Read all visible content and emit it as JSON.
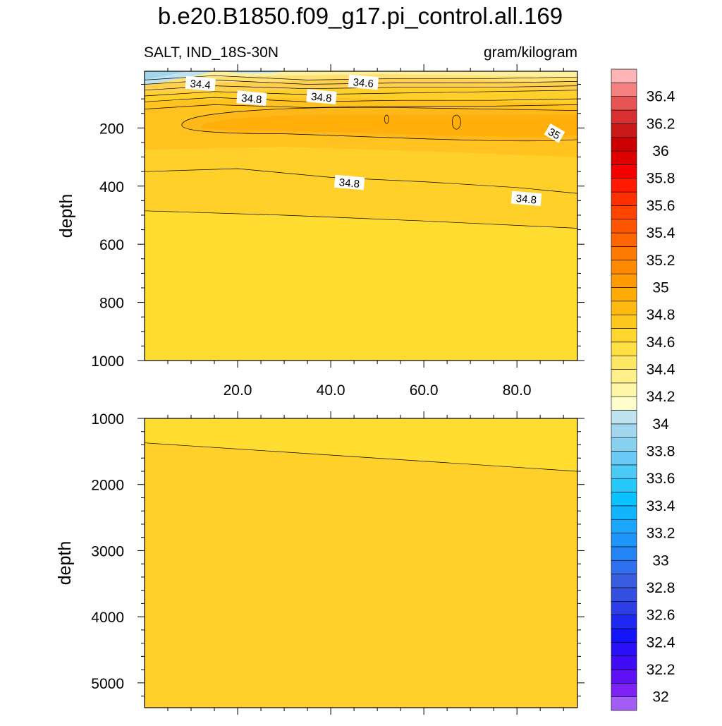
{
  "title": "b.e20.B1850.f09_g17.pi_control.all.169",
  "chart_data": [
    {
      "type": "heatmap",
      "panel": "upper",
      "left_label": "SALT, IND_18S-30N",
      "right_label": "gram/kilogram",
      "xlabel": "",
      "ylabel": "depth",
      "xlim": [
        0,
        93
      ],
      "ylim": [
        1000,
        5
      ],
      "x_ticks": [
        20,
        40,
        60,
        80
      ],
      "x_tick_labels": [
        "20.0",
        "40.0",
        "60.0",
        "80.0"
      ],
      "y_ticks": [
        200,
        400,
        600,
        800,
        1000
      ],
      "y_tick_labels": [
        "200",
        "400",
        "600",
        "800",
        "1000"
      ],
      "contour_labels": [
        {
          "text": "34.4",
          "x": 12,
          "depth": 50
        },
        {
          "text": "34.8",
          "x": 23,
          "depth": 100
        },
        {
          "text": "34.8",
          "x": 38,
          "depth": 95
        },
        {
          "text": "34.6",
          "x": 47,
          "depth": 45
        },
        {
          "text": "35",
          "x": 88,
          "depth": 220
        },
        {
          "text": "34.8",
          "x": 44,
          "depth": 390
        },
        {
          "text": "34.8",
          "x": 82,
          "depth": 445
        }
      ],
      "contours": [
        {
          "level": "34.8",
          "points": [
            [
              0,
              350
            ],
            [
              20,
              340
            ],
            [
              40,
              370
            ],
            [
              60,
              385
            ],
            [
              80,
              405
            ],
            [
              93,
              425
            ]
          ]
        },
        {
          "level": "34.7",
          "points": [
            [
              0,
              485
            ],
            [
              30,
              500
            ],
            [
              60,
              520
            ],
            [
              93,
              545
            ]
          ]
        }
      ]
    },
    {
      "type": "heatmap",
      "panel": "lower",
      "xlabel": "",
      "ylabel": "depth",
      "xlim": [
        0,
        93
      ],
      "ylim": [
        5375,
        1000
      ],
      "y_ticks": [
        1000,
        2000,
        3000,
        4000,
        5000
      ],
      "y_tick_labels": [
        "1000",
        "2000",
        "3000",
        "4000",
        "5000"
      ],
      "contours": [
        {
          "level": "34.7",
          "points": [
            [
              0,
              1370
            ],
            [
              93,
              1800
            ]
          ]
        }
      ]
    }
  ],
  "colorbar": {
    "levels": [
      "32",
      "32.1",
      "32.2",
      "32.3",
      "32.4",
      "32.5",
      "32.6",
      "32.7",
      "32.8",
      "32.9",
      "33",
      "33.1",
      "33.2",
      "33.3",
      "33.4",
      "33.5",
      "33.6",
      "33.7",
      "33.8",
      "33.9",
      "34",
      "34.1",
      "34.2",
      "34.3",
      "34.4",
      "34.5",
      "34.6",
      "34.7",
      "34.8",
      "34.9",
      "35",
      "35.1",
      "35.2",
      "35.3",
      "35.4",
      "35.5",
      "35.6",
      "35.7",
      "35.8",
      "35.9",
      "36",
      "36.1",
      "36.2",
      "36.3",
      "36.4",
      "36.5"
    ],
    "labels": [
      "32",
      "32.2",
      "32.4",
      "32.6",
      "32.8",
      "33",
      "33.2",
      "33.4",
      "33.6",
      "33.8",
      "34",
      "34.2",
      "34.4",
      "34.6",
      "34.8",
      "35",
      "35.2",
      "35.4",
      "35.6",
      "35.8",
      "36",
      "36.2",
      "36.4"
    ],
    "colors": [
      "#a25df5",
      "#7c22f5",
      "#5f12f5",
      "#3f0cf5",
      "#2a10f8",
      "#1414fa",
      "#1e28f0",
      "#2d3ee6",
      "#3450e0",
      "#3a5de0",
      "#2f70f0",
      "#2585f5",
      "#1e95fa",
      "#1aa6fc",
      "#12b4fd",
      "#0ac2ff",
      "#25c8f8",
      "#4ccaf5",
      "#6acaf5",
      "#86d0f0",
      "#a2d6ee",
      "#bfe3ee",
      "#ffffcc",
      "#fff7a8",
      "#fff08a",
      "#ffe766",
      "#ffdf44",
      "#ffd52e",
      "#ffc81e",
      "#ffba12",
      "#ffab05",
      "#ff9a00",
      "#ff8a00",
      "#ff7a00",
      "#ff6600",
      "#ff5500",
      "#ff4400",
      "#ff3000",
      "#ff1a00",
      "#f50000",
      "#e00000",
      "#cc0000",
      "#c81818",
      "#d83030",
      "#e65454",
      "#f58080",
      "#fdb5b5"
    ]
  },
  "field_colors": {
    "upper_bg": "#ffd02a",
    "deep": "#ffdc30",
    "core": "#ffae0a",
    "core_edge": "#ffb81a",
    "warm_mid": "#ffc21f",
    "surface": [
      "#fff0a0",
      "#ffe070",
      "#ffd050"
    ],
    "fresh": [
      "#a2d6ee",
      "#bfe3ee"
    ]
  }
}
